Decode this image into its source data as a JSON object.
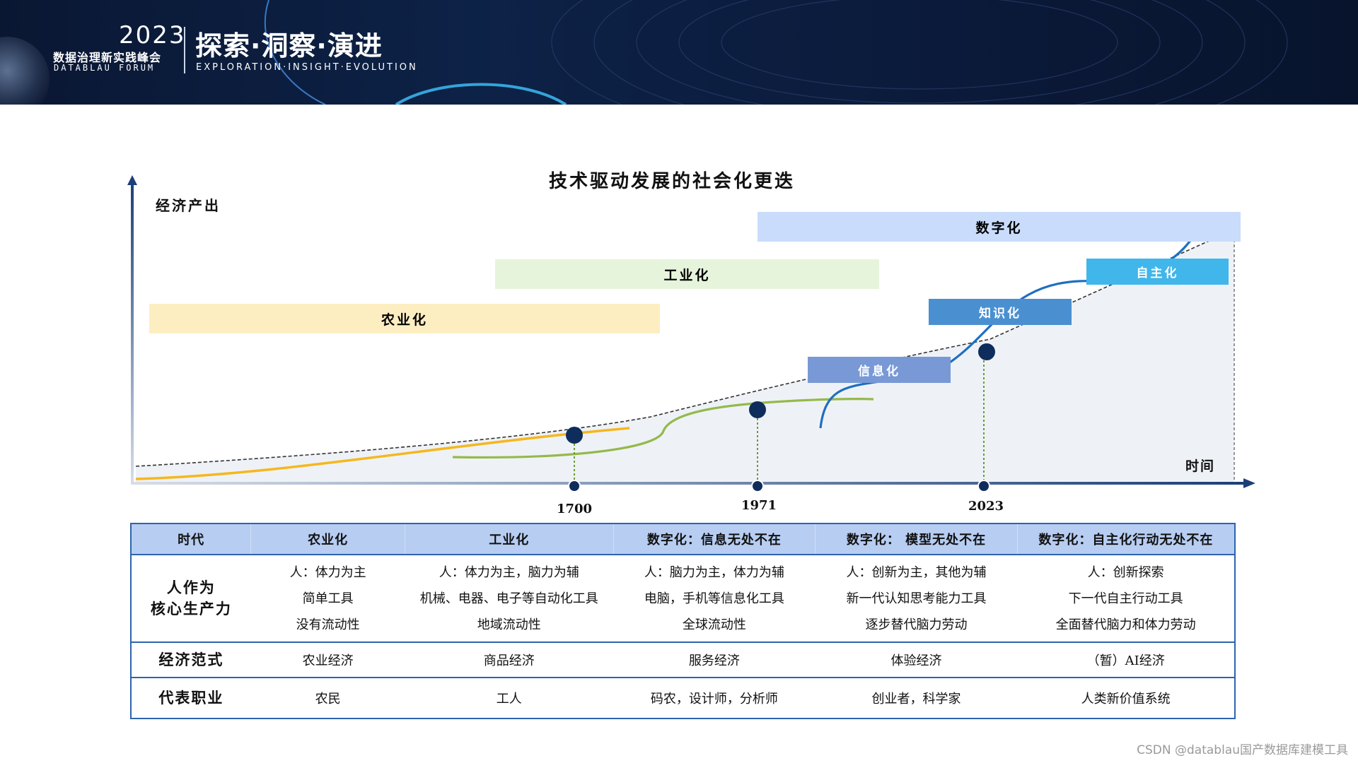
{
  "banner": {
    "year": "2023",
    "event_cn": "数据治理新实践峰会",
    "event_en": "DATABLAU FORUM",
    "slogan": "探索·洞察·演进",
    "slogan_en": "EXPLORATION·INSIGHT·EVOLUTION",
    "bg_color": "#0b1a3a"
  },
  "diagram": {
    "title": "技术驱动发展的社会化更迭",
    "y_axis_label": "经济产出",
    "x_axis_label": "时间",
    "bands": [
      {
        "label": "农业化",
        "color": "#fdeec2",
        "text_color": "#111111"
      },
      {
        "label": "工业化",
        "color": "#e7f4dc",
        "text_color": "#111111"
      },
      {
        "label": "数字化",
        "color": "#c9dcfb",
        "text_color": "#111111"
      }
    ],
    "stages": [
      {
        "label": "信息化",
        "color": "#7899d6",
        "text_color": "#ffffff"
      },
      {
        "label": "知识化",
        "color": "#4a90d1",
        "text_color": "#ffffff"
      },
      {
        "label": "自主化",
        "color": "#41b6ea",
        "text_color": "#ffffff"
      }
    ],
    "years": [
      "1700",
      "1971",
      "2023"
    ],
    "curve_colors": {
      "agriculture": "#f6b71d",
      "industry": "#95b94a",
      "digital": "#1f6fbf",
      "trend": "#333333",
      "node": "#0f2d5c"
    }
  },
  "table": {
    "headers": [
      "时代",
      "农业化",
      "工业化",
      "数字化：信息无处不在",
      "数字化： 模型无处不在",
      "数字化：自主化行动无处不在"
    ],
    "productivity": {
      "label_lines": [
        "人作为",
        "核心生产力"
      ],
      "cells": [
        [
          "人：体力为主",
          "简单工具",
          "没有流动性"
        ],
        [
          "人：体力为主，脑力为辅",
          "机械、电器、电子等自动化工具",
          "地域流动性"
        ],
        [
          "人：脑力为主，体力为辅",
          "电脑，手机等信息化工具",
          "全球流动性"
        ],
        [
          "人：创新为主，其他为辅",
          "新一代认知思考能力工具",
          "逐步替代脑力劳动"
        ],
        [
          "人：创新探索",
          "下一代自主行动工具",
          "全面替代脑力和体力劳动"
        ]
      ]
    },
    "economy": {
      "label": "经济范式",
      "cells": [
        "农业经济",
        "商品经济",
        "服务经济",
        "体验经济",
        "（暂）AI经济"
      ]
    },
    "occupation": {
      "label": "代表职业",
      "cells": [
        "农民",
        "工人",
        "码农，设计师，分析师",
        "创业者，科学家",
        "人类新价值系统"
      ]
    }
  },
  "credit": "CSDN @datablau国产数据库建模工具"
}
